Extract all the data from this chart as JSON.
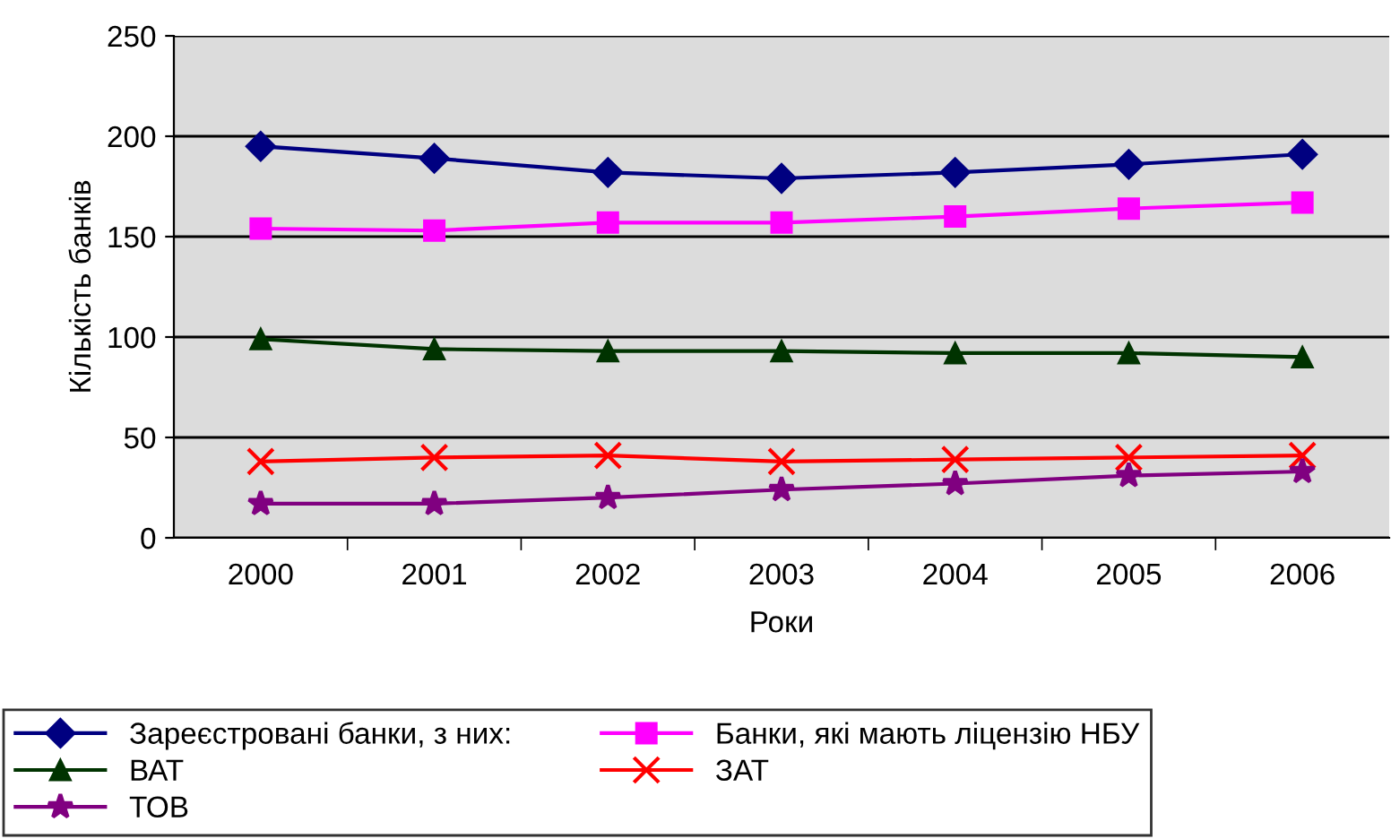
{
  "chart_data": {
    "type": "line",
    "xlabel": "Роки",
    "ylabel": "Кількість банків",
    "categories": [
      "2000",
      "2001",
      "2002",
      "2003",
      "2004",
      "2005",
      "2006"
    ],
    "series": [
      {
        "name": "Зареєстровані банки, з них:",
        "color": "#000080",
        "marker": "diamond",
        "values": [
          195,
          189,
          182,
          179,
          182,
          186,
          191
        ]
      },
      {
        "name": "Банки, які мають ліцензію НБУ",
        "color": "#ff00ff",
        "marker": "square",
        "values": [
          154,
          153,
          157,
          157,
          160,
          164,
          167
        ]
      },
      {
        "name": "ВАТ",
        "color": "#003300",
        "marker": "triangle",
        "values": [
          99,
          94,
          93,
          93,
          92,
          92,
          90
        ]
      },
      {
        "name": "ЗАТ",
        "color": "#ff0000",
        "marker": "cross",
        "values": [
          38,
          40,
          41,
          38,
          39,
          40,
          41
        ]
      },
      {
        "name": "ТОВ",
        "color": "#800080",
        "marker": "star",
        "values": [
          17,
          17,
          20,
          24,
          27,
          31,
          33
        ]
      }
    ],
    "ylim": [
      0,
      250
    ],
    "yticks": [
      0,
      50,
      100,
      150,
      200,
      250
    ],
    "grid": "y",
    "legend": "bottom",
    "line_style": "solid"
  }
}
